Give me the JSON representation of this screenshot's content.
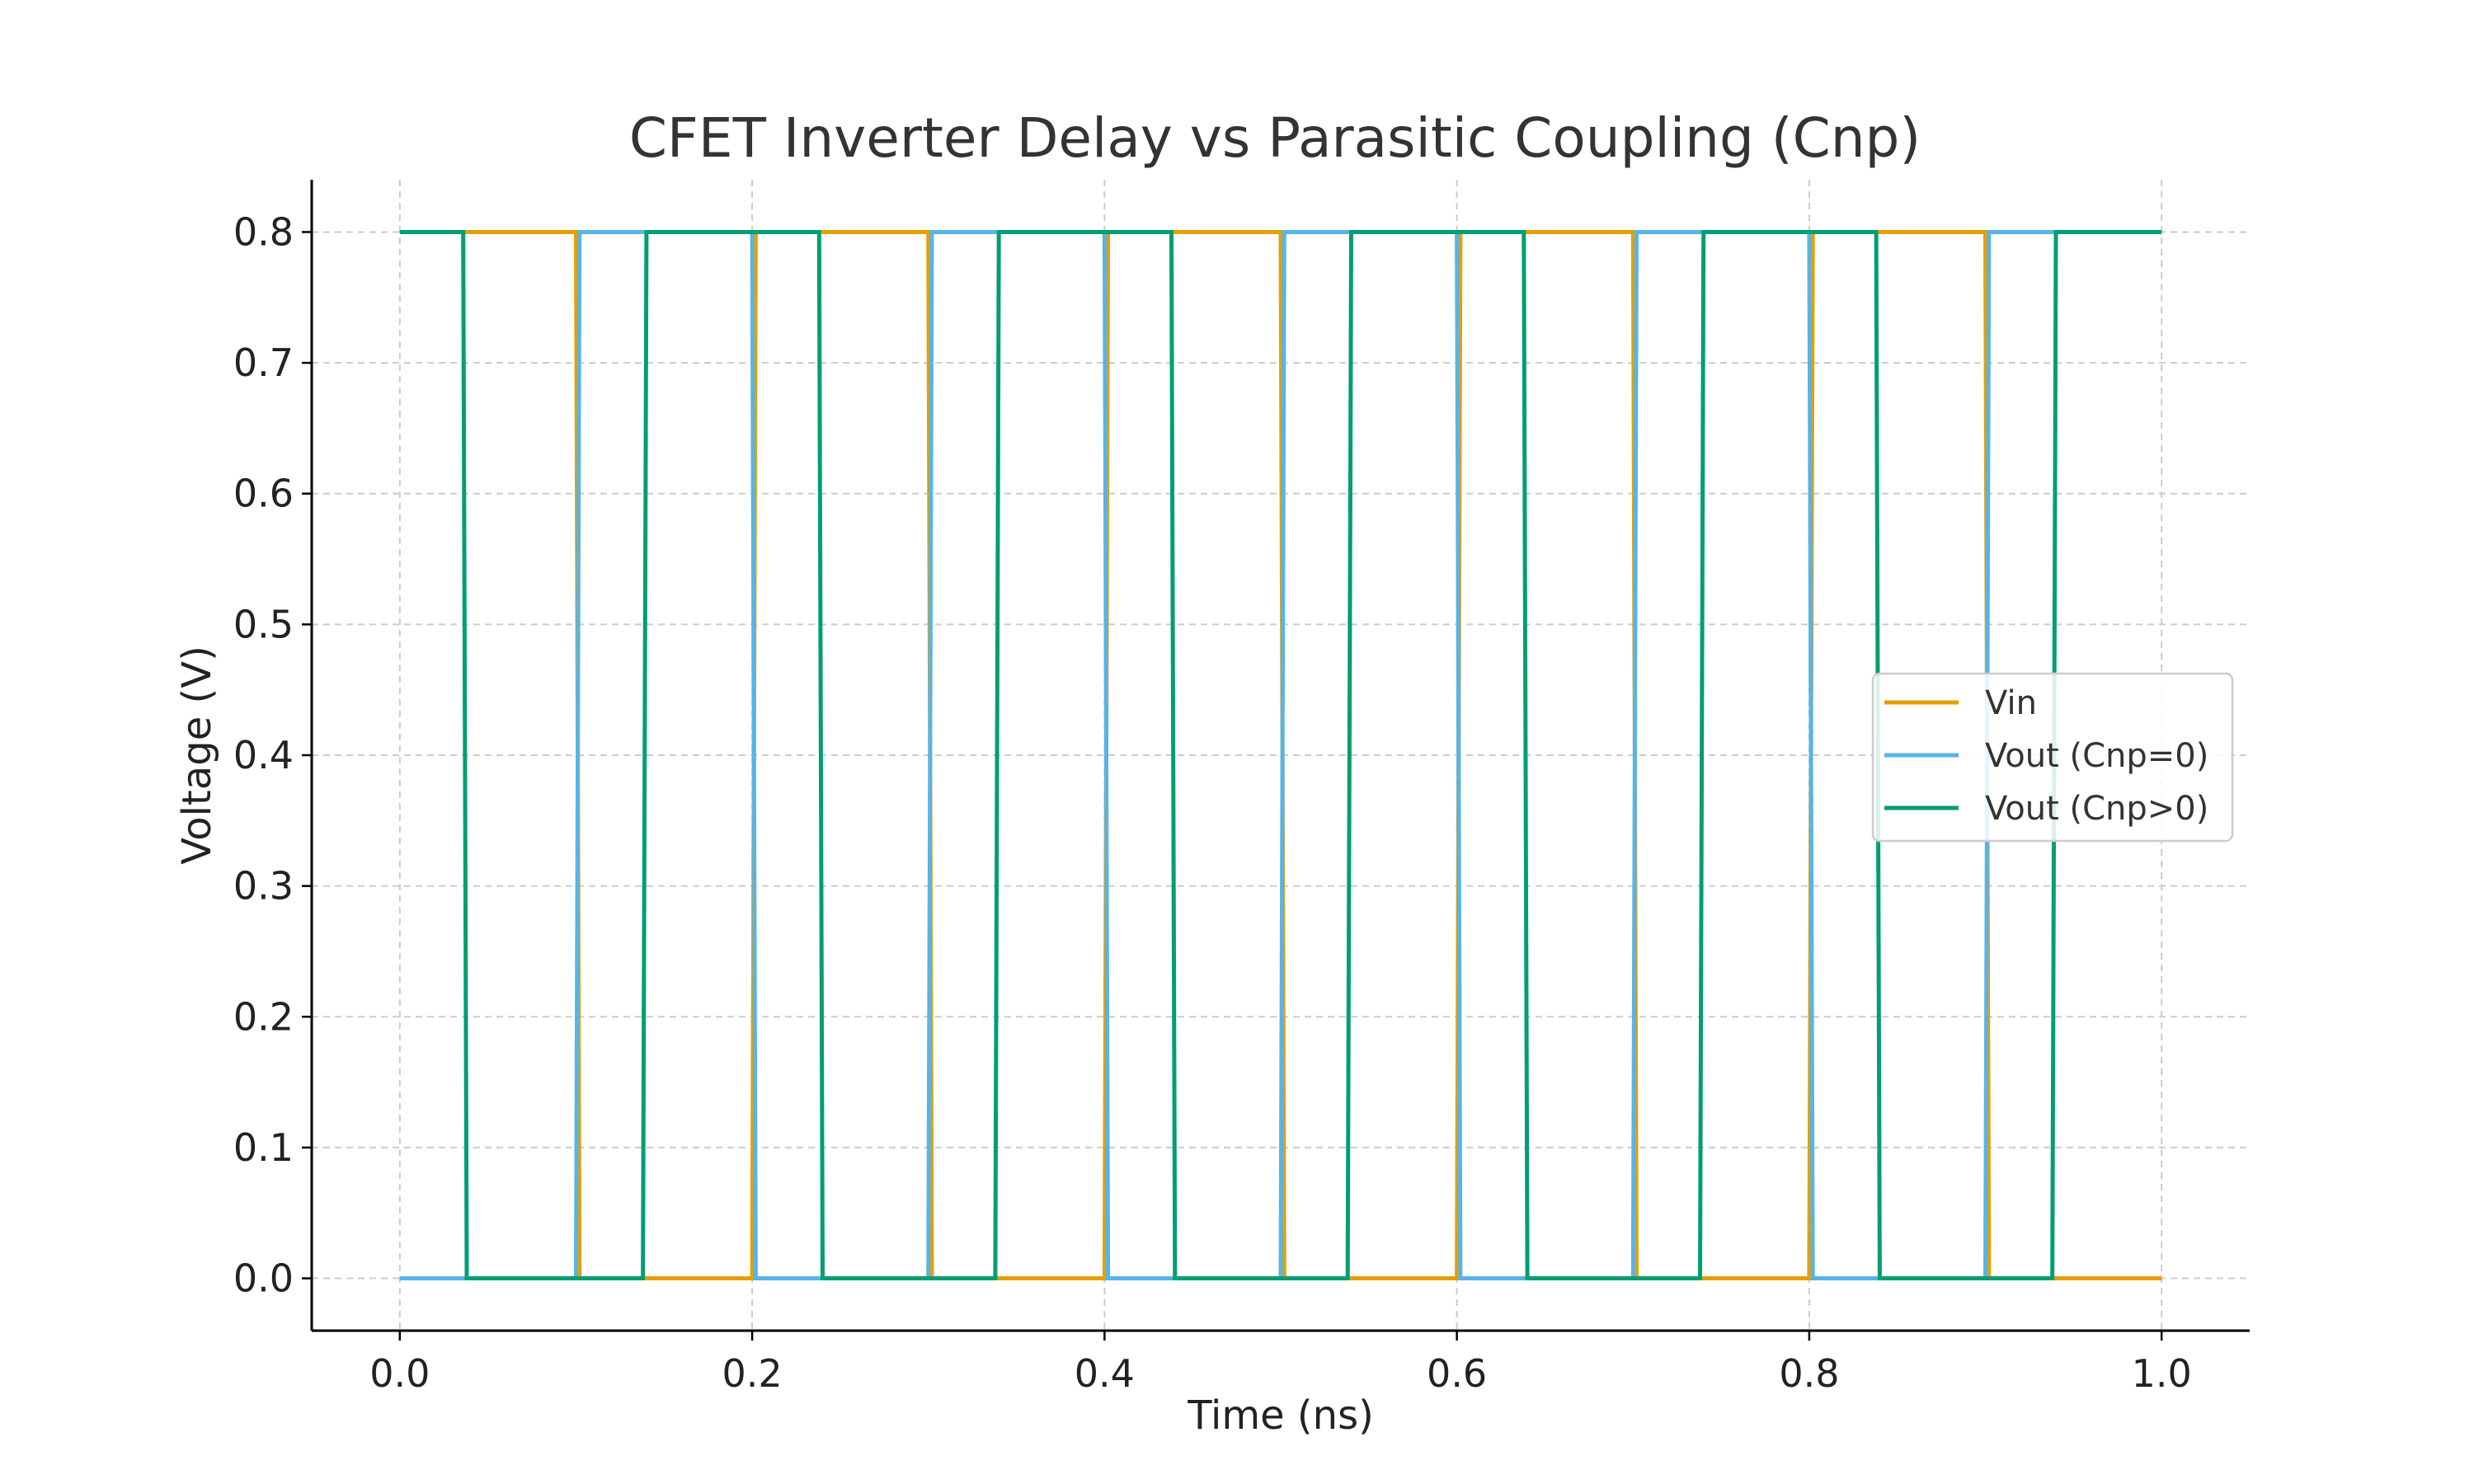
{
  "chart_data": {
    "type": "line",
    "title": "CFET Inverter Delay vs Parasitic Coupling (Cnp)",
    "xlabel": "Time (ns)",
    "ylabel": "Voltage (V)",
    "xlim": [
      -0.05,
      1.05
    ],
    "ylim": [
      -0.04,
      0.84
    ],
    "grid": true,
    "legend_position": "center-right",
    "x_ticks": [
      "0.0",
      "0.2",
      "0.4",
      "0.6",
      "0.8",
      "1.0"
    ],
    "y_ticks": [
      "0.0",
      "0.1",
      "0.2",
      "0.3",
      "0.4",
      "0.5",
      "0.6",
      "0.7",
      "0.8"
    ],
    "series": [
      {
        "name": "Vin",
        "color": "#E69F00",
        "x": [
          0.0,
          0.1,
          0.102,
          0.2,
          0.202,
          0.3,
          0.302,
          0.4,
          0.402,
          0.5,
          0.502,
          0.6,
          0.602,
          0.7,
          0.702,
          0.8,
          0.802,
          0.9,
          0.902,
          1.0
        ],
        "y": [
          0.8,
          0.8,
          0.0,
          0.0,
          0.8,
          0.8,
          0.0,
          0.0,
          0.8,
          0.8,
          0.0,
          0.0,
          0.8,
          0.8,
          0.0,
          0.0,
          0.8,
          0.8,
          0.0,
          0.0
        ]
      },
      {
        "name": "Vout (Cnp=0)",
        "color": "#56B4E9",
        "x": [
          0.0,
          0.1,
          0.102,
          0.2,
          0.202,
          0.3,
          0.302,
          0.4,
          0.402,
          0.5,
          0.502,
          0.6,
          0.602,
          0.7,
          0.702,
          0.8,
          0.802,
          0.9,
          0.902,
          1.0
        ],
        "y": [
          0.0,
          0.0,
          0.8,
          0.8,
          0.0,
          0.0,
          0.8,
          0.8,
          0.0,
          0.0,
          0.8,
          0.8,
          0.0,
          0.0,
          0.8,
          0.8,
          0.0,
          0.0,
          0.8,
          0.8
        ]
      },
      {
        "name": "Vout (Cnp>0)",
        "color": "#009E73",
        "x": [
          0.0,
          0.036,
          0.038,
          0.138,
          0.14,
          0.238,
          0.24,
          0.338,
          0.34,
          0.438,
          0.44,
          0.538,
          0.54,
          0.638,
          0.64,
          0.738,
          0.74,
          0.838,
          0.84,
          0.938,
          0.94,
          1.0
        ],
        "y": [
          0.8,
          0.8,
          0.0,
          0.0,
          0.8,
          0.8,
          0.0,
          0.0,
          0.8,
          0.8,
          0.0,
          0.0,
          0.8,
          0.8,
          0.0,
          0.0,
          0.8,
          0.8,
          0.0,
          0.0,
          0.8,
          0.8
        ]
      }
    ]
  }
}
